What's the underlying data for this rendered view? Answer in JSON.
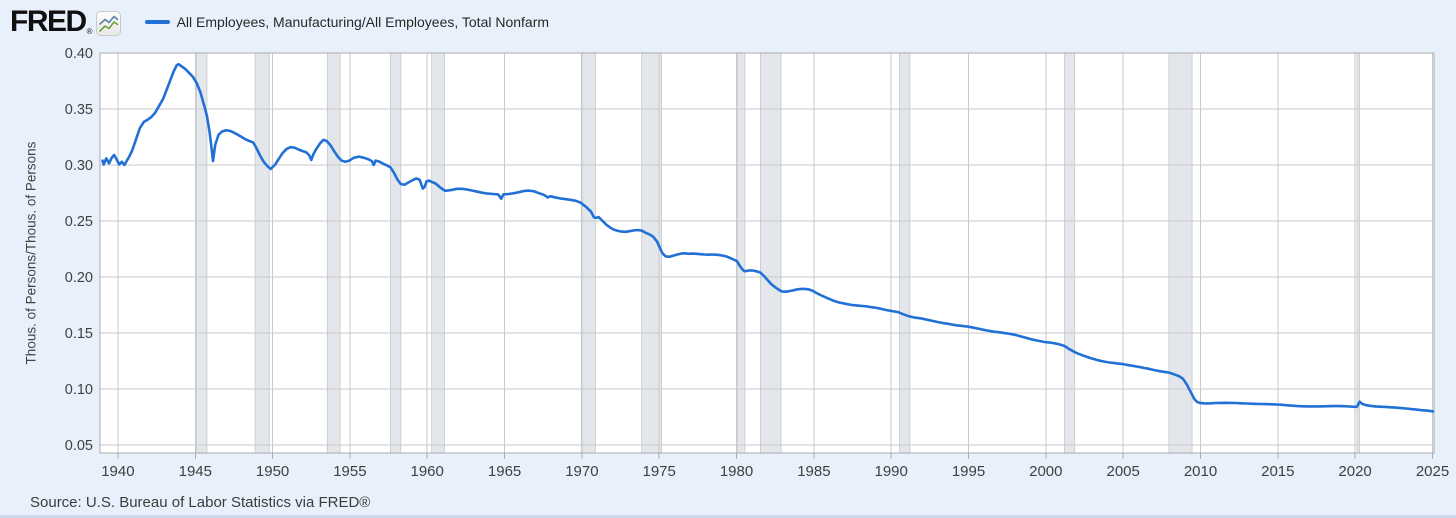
{
  "header": {
    "logo_text": "FRED",
    "logo_registered": "®",
    "legend": {
      "label": "All Employees, Manufacturing/All Employees, Total Nonfarm"
    }
  },
  "footer": {
    "source": "Source: U.S. Bureau of Labor Statistics via FRED®"
  },
  "colors": {
    "background": "#e8f1fb",
    "plot_background": "#ffffff",
    "series_line": "#2170d6",
    "gridline": "#c9c9c9",
    "plot_border": "#ababab",
    "recession_band": "#e3e6ea",
    "recession_band_edge": "#c5c8cc",
    "tick_text": "#404040",
    "axis_title_text": "#424242",
    "legend_text": "#282828",
    "logo_text_color": "#101010",
    "source_text": "#3c3c3c",
    "bottom_strip": "#ccd9ed",
    "logo_icon_green": "#6f9e3f",
    "logo_icon_blue": "#5b7fa6"
  },
  "chart_data": {
    "type": "line",
    "series_name": "All Employees, Manufacturing/All Employees, Total Nonfarm",
    "ylabel": "Thous. of Persons/Thous. of Persons",
    "xlabel": "",
    "grid": true,
    "legend_position": "top-left",
    "x_ticks": [
      1940,
      1945,
      1950,
      1955,
      1960,
      1965,
      1970,
      1975,
      1980,
      1985,
      1990,
      1995,
      2000,
      2005,
      2010,
      2015,
      2020,
      2025
    ],
    "y_ticks": [
      0.05,
      0.1,
      0.15,
      0.2,
      0.25,
      0.3,
      0.35,
      0.4
    ],
    "xlim": [
      1938.84,
      2025.1
    ],
    "ylim": [
      0.043,
      0.4
    ],
    "recessions": [
      [
        1945.08,
        1945.75
      ],
      [
        1948.87,
        1949.79
      ],
      [
        1953.54,
        1954.37
      ],
      [
        1957.62,
        1958.29
      ],
      [
        1960.29,
        1961.12
      ],
      [
        1969.96,
        1970.87
      ],
      [
        1973.87,
        1975.16
      ],
      [
        1980.04,
        1980.54
      ],
      [
        1981.54,
        1982.87
      ],
      [
        1990.54,
        1991.21
      ],
      [
        2001.21,
        2001.87
      ],
      [
        2007.96,
        2009.46
      ],
      [
        2020.12,
        2020.29
      ]
    ],
    "points": [
      [
        1939.0,
        0.304
      ],
      [
        1939.08,
        0.3005
      ],
      [
        1939.25,
        0.306
      ],
      [
        1939.42,
        0.3015
      ],
      [
        1939.58,
        0.306
      ],
      [
        1939.75,
        0.309
      ],
      [
        1939.92,
        0.305
      ],
      [
        1940.08,
        0.3005
      ],
      [
        1940.25,
        0.303
      ],
      [
        1940.42,
        0.3
      ],
      [
        1940.58,
        0.304
      ],
      [
        1940.75,
        0.308
      ],
      [
        1940.92,
        0.313
      ],
      [
        1941.17,
        0.323
      ],
      [
        1941.42,
        0.333
      ],
      [
        1941.67,
        0.3385
      ],
      [
        1941.92,
        0.3405
      ],
      [
        1942.17,
        0.343
      ],
      [
        1942.42,
        0.347
      ],
      [
        1942.67,
        0.353
      ],
      [
        1942.92,
        0.359
      ],
      [
        1943.17,
        0.368
      ],
      [
        1943.42,
        0.377
      ],
      [
        1943.62,
        0.384
      ],
      [
        1943.8,
        0.389
      ],
      [
        1943.92,
        0.39
      ],
      [
        1944.08,
        0.3885
      ],
      [
        1944.33,
        0.386
      ],
      [
        1944.58,
        0.3825
      ],
      [
        1944.83,
        0.379
      ],
      [
        1945.08,
        0.3735
      ],
      [
        1945.33,
        0.365
      ],
      [
        1945.58,
        0.353
      ],
      [
        1945.75,
        0.344
      ],
      [
        1945.92,
        0.33
      ],
      [
        1946.04,
        0.317
      ],
      [
        1946.15,
        0.3035
      ],
      [
        1946.29,
        0.318
      ],
      [
        1946.5,
        0.327
      ],
      [
        1946.75,
        0.33
      ],
      [
        1947.0,
        0.331
      ],
      [
        1947.25,
        0.3305
      ],
      [
        1947.5,
        0.329
      ],
      [
        1947.75,
        0.327
      ],
      [
        1948.0,
        0.325
      ],
      [
        1948.25,
        0.323
      ],
      [
        1948.5,
        0.3215
      ],
      [
        1948.75,
        0.32
      ],
      [
        1948.92,
        0.316
      ],
      [
        1949.17,
        0.309
      ],
      [
        1949.42,
        0.303
      ],
      [
        1949.67,
        0.299
      ],
      [
        1949.88,
        0.2965
      ],
      [
        1950.17,
        0.3005
      ],
      [
        1950.42,
        0.306
      ],
      [
        1950.67,
        0.311
      ],
      [
        1950.92,
        0.3145
      ],
      [
        1951.17,
        0.316
      ],
      [
        1951.42,
        0.3155
      ],
      [
        1951.67,
        0.314
      ],
      [
        1951.92,
        0.3125
      ],
      [
        1952.17,
        0.3115
      ],
      [
        1952.38,
        0.3085
      ],
      [
        1952.5,
        0.3045
      ],
      [
        1952.63,
        0.3095
      ],
      [
        1952.83,
        0.3145
      ],
      [
        1953.08,
        0.3195
      ],
      [
        1953.29,
        0.3225
      ],
      [
        1953.5,
        0.3215
      ],
      [
        1953.75,
        0.3175
      ],
      [
        1954.0,
        0.312
      ],
      [
        1954.25,
        0.307
      ],
      [
        1954.46,
        0.304
      ],
      [
        1954.71,
        0.303
      ],
      [
        1954.96,
        0.304
      ],
      [
        1955.25,
        0.3065
      ],
      [
        1955.58,
        0.3075
      ],
      [
        1955.92,
        0.3065
      ],
      [
        1956.21,
        0.305
      ],
      [
        1956.42,
        0.3035
      ],
      [
        1956.54,
        0.3
      ],
      [
        1956.67,
        0.304
      ],
      [
        1956.92,
        0.303
      ],
      [
        1957.17,
        0.301
      ],
      [
        1957.42,
        0.2995
      ],
      [
        1957.62,
        0.298
      ],
      [
        1957.83,
        0.2935
      ],
      [
        1958.08,
        0.287
      ],
      [
        1958.29,
        0.283
      ],
      [
        1958.54,
        0.2825
      ],
      [
        1958.79,
        0.2845
      ],
      [
        1959.04,
        0.2865
      ],
      [
        1959.29,
        0.288
      ],
      [
        1959.5,
        0.287
      ],
      [
        1959.71,
        0.279
      ],
      [
        1959.83,
        0.2805
      ],
      [
        1959.96,
        0.2855
      ],
      [
        1960.13,
        0.286
      ],
      [
        1960.29,
        0.285
      ],
      [
        1960.54,
        0.2835
      ],
      [
        1960.79,
        0.2805
      ],
      [
        1961.04,
        0.278
      ],
      [
        1961.17,
        0.277
      ],
      [
        1961.42,
        0.2775
      ],
      [
        1961.67,
        0.278
      ],
      [
        1961.92,
        0.2788
      ],
      [
        1962.25,
        0.2788
      ],
      [
        1962.58,
        0.2782
      ],
      [
        1962.92,
        0.2772
      ],
      [
        1963.25,
        0.2762
      ],
      [
        1963.58,
        0.2752
      ],
      [
        1963.92,
        0.2745
      ],
      [
        1964.25,
        0.2742
      ],
      [
        1964.58,
        0.2738
      ],
      [
        1964.79,
        0.27
      ],
      [
        1964.92,
        0.2738
      ],
      [
        1965.25,
        0.2742
      ],
      [
        1965.58,
        0.2748
      ],
      [
        1965.92,
        0.2758
      ],
      [
        1966.25,
        0.2768
      ],
      [
        1966.58,
        0.2772
      ],
      [
        1966.92,
        0.2765
      ],
      [
        1967.25,
        0.2748
      ],
      [
        1967.58,
        0.2732
      ],
      [
        1967.79,
        0.271
      ],
      [
        1967.96,
        0.2722
      ],
      [
        1968.25,
        0.2712
      ],
      [
        1968.58,
        0.2702
      ],
      [
        1968.92,
        0.2696
      ],
      [
        1969.25,
        0.269
      ],
      [
        1969.58,
        0.2682
      ],
      [
        1969.92,
        0.2665
      ],
      [
        1970.25,
        0.2628
      ],
      [
        1970.58,
        0.2585
      ],
      [
        1970.79,
        0.2532
      ],
      [
        1970.92,
        0.2528
      ],
      [
        1971.08,
        0.2535
      ],
      [
        1971.33,
        0.2502
      ],
      [
        1971.58,
        0.2468
      ],
      [
        1971.83,
        0.2442
      ],
      [
        1972.08,
        0.2422
      ],
      [
        1972.33,
        0.2412
      ],
      [
        1972.58,
        0.2406
      ],
      [
        1972.83,
        0.2404
      ],
      [
        1973.08,
        0.241
      ],
      [
        1973.33,
        0.2416
      ],
      [
        1973.58,
        0.242
      ],
      [
        1973.87,
        0.2415
      ],
      [
        1974.12,
        0.2395
      ],
      [
        1974.37,
        0.2382
      ],
      [
        1974.62,
        0.236
      ],
      [
        1974.87,
        0.2315
      ],
      [
        1975.04,
        0.2262
      ],
      [
        1975.21,
        0.2212
      ],
      [
        1975.42,
        0.2185
      ],
      [
        1975.67,
        0.2182
      ],
      [
        1975.92,
        0.2192
      ],
      [
        1976.17,
        0.2202
      ],
      [
        1976.42,
        0.221
      ],
      [
        1976.67,
        0.2212
      ],
      [
        1976.92,
        0.2208
      ],
      [
        1977.17,
        0.221
      ],
      [
        1977.42,
        0.2208
      ],
      [
        1977.67,
        0.2204
      ],
      [
        1977.92,
        0.2202
      ],
      [
        1978.17,
        0.22
      ],
      [
        1978.42,
        0.2202
      ],
      [
        1978.67,
        0.22
      ],
      [
        1978.92,
        0.2196
      ],
      [
        1979.17,
        0.219
      ],
      [
        1979.42,
        0.218
      ],
      [
        1979.67,
        0.2166
      ],
      [
        1979.92,
        0.215
      ],
      [
        1980.04,
        0.214
      ],
      [
        1980.21,
        0.21
      ],
      [
        1980.42,
        0.2062
      ],
      [
        1980.54,
        0.2052
      ],
      [
        1980.75,
        0.2058
      ],
      [
        1980.96,
        0.206
      ],
      [
        1981.17,
        0.2055
      ],
      [
        1981.38,
        0.2048
      ],
      [
        1981.54,
        0.204
      ],
      [
        1981.79,
        0.2008
      ],
      [
        1982.04,
        0.1968
      ],
      [
        1982.29,
        0.1932
      ],
      [
        1982.54,
        0.1905
      ],
      [
        1982.79,
        0.1882
      ],
      [
        1982.92,
        0.1872
      ],
      [
        1983.17,
        0.187
      ],
      [
        1983.42,
        0.1875
      ],
      [
        1983.67,
        0.1882
      ],
      [
        1983.92,
        0.189
      ],
      [
        1984.17,
        0.1895
      ],
      [
        1984.42,
        0.1895
      ],
      [
        1984.67,
        0.189
      ],
      [
        1984.92,
        0.1878
      ],
      [
        1985.17,
        0.1858
      ],
      [
        1985.42,
        0.184
      ],
      [
        1985.67,
        0.1825
      ],
      [
        1985.92,
        0.181
      ],
      [
        1986.17,
        0.1795
      ],
      [
        1986.42,
        0.1782
      ],
      [
        1986.67,
        0.1772
      ],
      [
        1986.92,
        0.1765
      ],
      [
        1987.17,
        0.1758
      ],
      [
        1987.42,
        0.1752
      ],
      [
        1987.67,
        0.1748
      ],
      [
        1987.92,
        0.1745
      ],
      [
        1988.17,
        0.1742
      ],
      [
        1988.42,
        0.1738
      ],
      [
        1988.67,
        0.1732
      ],
      [
        1988.92,
        0.1728
      ],
      [
        1989.17,
        0.1722
      ],
      [
        1989.42,
        0.1714
      ],
      [
        1989.67,
        0.1706
      ],
      [
        1989.92,
        0.17
      ],
      [
        1990.17,
        0.1694
      ],
      [
        1990.42,
        0.1688
      ],
      [
        1990.54,
        0.1682
      ],
      [
        1990.79,
        0.1668
      ],
      [
        1991.04,
        0.1655
      ],
      [
        1991.21,
        0.1648
      ],
      [
        1991.46,
        0.164
      ],
      [
        1991.71,
        0.1636
      ],
      [
        1991.96,
        0.163
      ],
      [
        1992.21,
        0.1622
      ],
      [
        1992.46,
        0.1615
      ],
      [
        1992.71,
        0.1608
      ],
      [
        1992.96,
        0.16
      ],
      [
        1993.21,
        0.1594
      ],
      [
        1993.46,
        0.1588
      ],
      [
        1993.71,
        0.1582
      ],
      [
        1993.96,
        0.1576
      ],
      [
        1994.21,
        0.157
      ],
      [
        1994.46,
        0.1566
      ],
      [
        1994.71,
        0.1562
      ],
      [
        1994.96,
        0.1558
      ],
      [
        1995.21,
        0.1552
      ],
      [
        1995.46,
        0.1545
      ],
      [
        1995.71,
        0.1538
      ],
      [
        1995.96,
        0.153
      ],
      [
        1996.21,
        0.1523
      ],
      [
        1996.46,
        0.1517
      ],
      [
        1996.71,
        0.1512
      ],
      [
        1996.96,
        0.1508
      ],
      [
        1997.21,
        0.1503
      ],
      [
        1997.46,
        0.1498
      ],
      [
        1997.71,
        0.1492
      ],
      [
        1997.96,
        0.1486
      ],
      [
        1998.21,
        0.1478
      ],
      [
        1998.46,
        0.1468
      ],
      [
        1998.71,
        0.1458
      ],
      [
        1998.96,
        0.1448
      ],
      [
        1999.21,
        0.144
      ],
      [
        1999.46,
        0.1433
      ],
      [
        1999.71,
        0.1426
      ],
      [
        1999.96,
        0.142
      ],
      [
        2000.21,
        0.1416
      ],
      [
        2000.46,
        0.1412
      ],
      [
        2000.71,
        0.1405
      ],
      [
        2000.96,
        0.1396
      ],
      [
        2001.21,
        0.1385
      ],
      [
        2001.46,
        0.1362
      ],
      [
        2001.71,
        0.1342
      ],
      [
        2001.87,
        0.133
      ],
      [
        2002.12,
        0.1315
      ],
      [
        2002.37,
        0.1302
      ],
      [
        2002.62,
        0.129
      ],
      [
        2002.87,
        0.1278
      ],
      [
        2003.12,
        0.1268
      ],
      [
        2003.37,
        0.1258
      ],
      [
        2003.62,
        0.125
      ],
      [
        2003.87,
        0.1243
      ],
      [
        2004.12,
        0.1238
      ],
      [
        2004.37,
        0.1234
      ],
      [
        2004.62,
        0.123
      ],
      [
        2004.87,
        0.1226
      ],
      [
        2005.12,
        0.122
      ],
      [
        2005.37,
        0.1214
      ],
      [
        2005.62,
        0.1208
      ],
      [
        2005.87,
        0.1202
      ],
      [
        2006.12,
        0.1196
      ],
      [
        2006.37,
        0.1189
      ],
      [
        2006.62,
        0.1182
      ],
      [
        2006.87,
        0.1174
      ],
      [
        2007.12,
        0.1167
      ],
      [
        2007.37,
        0.116
      ],
      [
        2007.62,
        0.1155
      ],
      [
        2007.87,
        0.115
      ],
      [
        2008.12,
        0.114
      ],
      [
        2008.37,
        0.1128
      ],
      [
        2008.62,
        0.1115
      ],
      [
        2008.87,
        0.1092
      ],
      [
        2009.12,
        0.104
      ],
      [
        2009.29,
        0.0995
      ],
      [
        2009.46,
        0.095
      ],
      [
        2009.62,
        0.0908
      ],
      [
        2009.79,
        0.0885
      ],
      [
        2009.96,
        0.0877
      ],
      [
        2010.21,
        0.0874
      ],
      [
        2010.46,
        0.0873
      ],
      [
        2010.71,
        0.0874
      ],
      [
        2010.96,
        0.0876
      ],
      [
        2011.29,
        0.0877
      ],
      [
        2011.62,
        0.0878
      ],
      [
        2011.96,
        0.0877
      ],
      [
        2012.29,
        0.0876
      ],
      [
        2012.62,
        0.0874
      ],
      [
        2012.96,
        0.0872
      ],
      [
        2013.29,
        0.087
      ],
      [
        2013.62,
        0.0868
      ],
      [
        2013.96,
        0.0867
      ],
      [
        2014.29,
        0.0866
      ],
      [
        2014.62,
        0.0865
      ],
      [
        2014.96,
        0.0863
      ],
      [
        2015.29,
        0.086
      ],
      [
        2015.62,
        0.0856
      ],
      [
        2015.96,
        0.0852
      ],
      [
        2016.29,
        0.0849
      ],
      [
        2016.62,
        0.0847
      ],
      [
        2016.96,
        0.0846
      ],
      [
        2017.29,
        0.0846
      ],
      [
        2017.62,
        0.0846
      ],
      [
        2017.96,
        0.0847
      ],
      [
        2018.29,
        0.0848
      ],
      [
        2018.62,
        0.0849
      ],
      [
        2018.96,
        0.0849
      ],
      [
        2019.29,
        0.0848
      ],
      [
        2019.62,
        0.0845
      ],
      [
        2019.96,
        0.0842
      ],
      [
        2020.12,
        0.0843
      ],
      [
        2020.29,
        0.0888
      ],
      [
        2020.46,
        0.0868
      ],
      [
        2020.71,
        0.0857
      ],
      [
        2020.96,
        0.0851
      ],
      [
        2021.29,
        0.0846
      ],
      [
        2021.62,
        0.0843
      ],
      [
        2021.96,
        0.0841
      ],
      [
        2022.29,
        0.0838
      ],
      [
        2022.62,
        0.0835
      ],
      [
        2022.96,
        0.0831
      ],
      [
        2023.29,
        0.0827
      ],
      [
        2023.62,
        0.0822
      ],
      [
        2023.96,
        0.0817
      ],
      [
        2024.29,
        0.0812
      ],
      [
        2024.62,
        0.0808
      ],
      [
        2024.96,
        0.0803
      ],
      [
        2025.04,
        0.0801
      ]
    ]
  }
}
